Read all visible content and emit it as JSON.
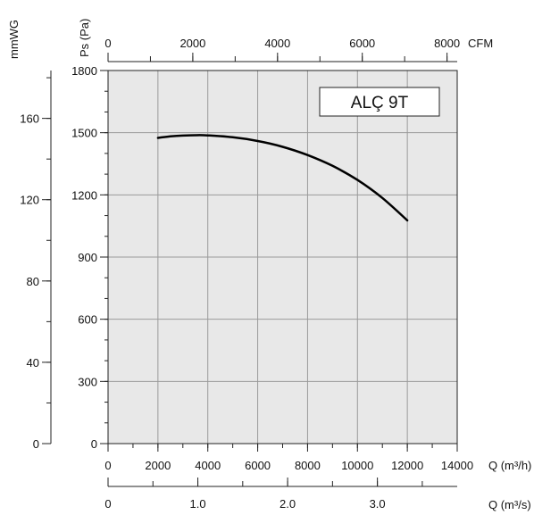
{
  "chart_data": {
    "type": "line",
    "title": "ALÇ 9T",
    "left_axis_unit": "mmWG",
    "ylabel": "Ps (Pa)",
    "xlabel": "Q (m³/h)",
    "top_axis_unit": "CFM",
    "bottom2_axis_unit": "Q (m³/s)",
    "xlim": [
      0,
      14000
    ],
    "ylim": [
      0,
      1800
    ],
    "x_ticks": [
      "0",
      "2000",
      "4000",
      "6000",
      "8000",
      "10000",
      "12000",
      "14000"
    ],
    "y_ticks": [
      "0",
      "300",
      "600",
      "900",
      "1200",
      "1500",
      "1800"
    ],
    "cfm_ticks": [
      "0",
      "2000",
      "4000",
      "6000",
      "8000"
    ],
    "mmwg_ticks": [
      "0",
      "40",
      "80",
      "120",
      "160"
    ],
    "m3s_ticks": [
      "0",
      "1.0",
      "2.0",
      "3.0"
    ],
    "grid": true,
    "series": [
      {
        "x": [
          2000,
          2500,
          3000,
          3500,
          4000,
          5000,
          6000,
          7000,
          8000,
          9000,
          10000,
          11000,
          12000
        ],
        "y": [
          1475,
          1482,
          1486,
          1488,
          1487,
          1478,
          1460,
          1432,
          1392,
          1340,
          1272,
          1185,
          1077
        ]
      }
    ]
  }
}
